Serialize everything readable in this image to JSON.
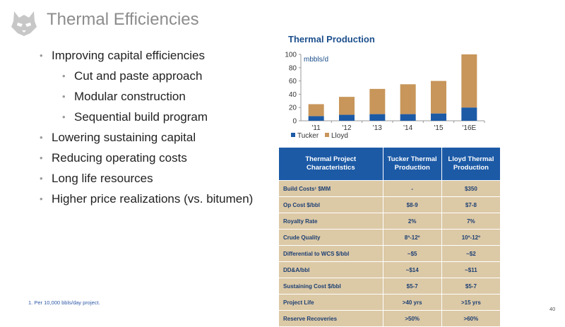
{
  "page": {
    "title": "Thermal Efficiencies",
    "footnote": "1. Per 10,000 bbls/day project.",
    "page_number": "40"
  },
  "bullets": [
    {
      "text": "Improving capital efficiencies",
      "level": 1
    },
    {
      "text": "Cut and paste approach",
      "level": 2
    },
    {
      "text": "Modular construction",
      "level": 2
    },
    {
      "text": "Sequential build program",
      "level": 2
    },
    {
      "text": "Lowering sustaining capital",
      "level": 1
    },
    {
      "text": "Reducing operating costs",
      "level": 1
    },
    {
      "text": "Long life resources",
      "level": 1
    },
    {
      "text": "Higher price realizations (vs. bitumen)",
      "level": 1
    }
  ],
  "chart_data": {
    "type": "bar",
    "stacked": true,
    "title": "Thermal Production",
    "unit_label": "mbbls/d",
    "categories": [
      "'11",
      "'12",
      "'13",
      "'14",
      "'15",
      "'16E"
    ],
    "series": [
      {
        "name": "Tucker",
        "color": "#1c5aa6",
        "values": [
          7,
          9,
          10,
          10,
          11,
          20
        ]
      },
      {
        "name": "Lloyd",
        "color": "#c8965a",
        "values": [
          18,
          27,
          38,
          45,
          49,
          80
        ]
      }
    ],
    "ylim": [
      0,
      100
    ],
    "yticks": [
      0,
      20,
      40,
      60,
      80,
      100
    ],
    "legend": "bottom-left"
  },
  "table": {
    "headers": [
      "Thermal Project Characteristics",
      "Tucker Thermal Production",
      "Lloyd Thermal Production"
    ],
    "rows": [
      [
        "Build Costs¹ $MM",
        "-",
        "$350"
      ],
      [
        "Op Cost $/bbl",
        "$8-9",
        "$7-8"
      ],
      [
        "Royalty Rate",
        "2%",
        "7%"
      ],
      [
        "Crude Quality",
        "8º-12º",
        "10º-12º"
      ],
      [
        "Differential to WCS $/bbl",
        "~$5",
        "~$2"
      ],
      [
        "DD&A/bbl",
        "~$14",
        "~$11"
      ],
      [
        "Sustaining Cost $/bbl",
        "$5-7",
        "$5-7"
      ],
      [
        "Project Life",
        ">40 yrs",
        ">15 yrs"
      ],
      [
        "Reserve Recoveries",
        ">50%",
        ">60%"
      ]
    ]
  },
  "colors": {
    "header_bg": "#1c5aa6",
    "row_bg": "#dcc9a6",
    "title_gray": "#8c8c8c"
  },
  "icons": {
    "logo": "husky-dog-icon"
  }
}
